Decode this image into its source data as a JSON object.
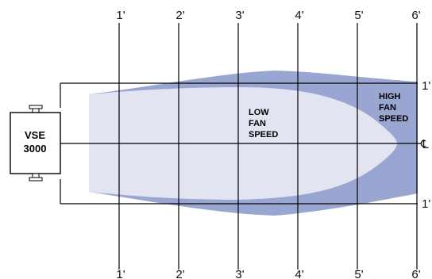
{
  "diagram": {
    "unit": {
      "model_line1": "VSE",
      "model_line2": "3000"
    },
    "distance_labels": [
      "1'",
      "2'",
      "3'",
      "4'",
      "5'",
      "6'"
    ],
    "side_labels": {
      "upper": "1'",
      "lower": "1'"
    },
    "centerline_symbol": "℄",
    "zones": {
      "low": [
        "LOW",
        "FAN",
        "SPEED"
      ],
      "high": [
        "HIGH",
        "FAN",
        "SPEED"
      ]
    },
    "colors": {
      "high_zone": "#9aa6d2",
      "low_zone": "#e2e4f2",
      "lines": "#000000"
    }
  }
}
